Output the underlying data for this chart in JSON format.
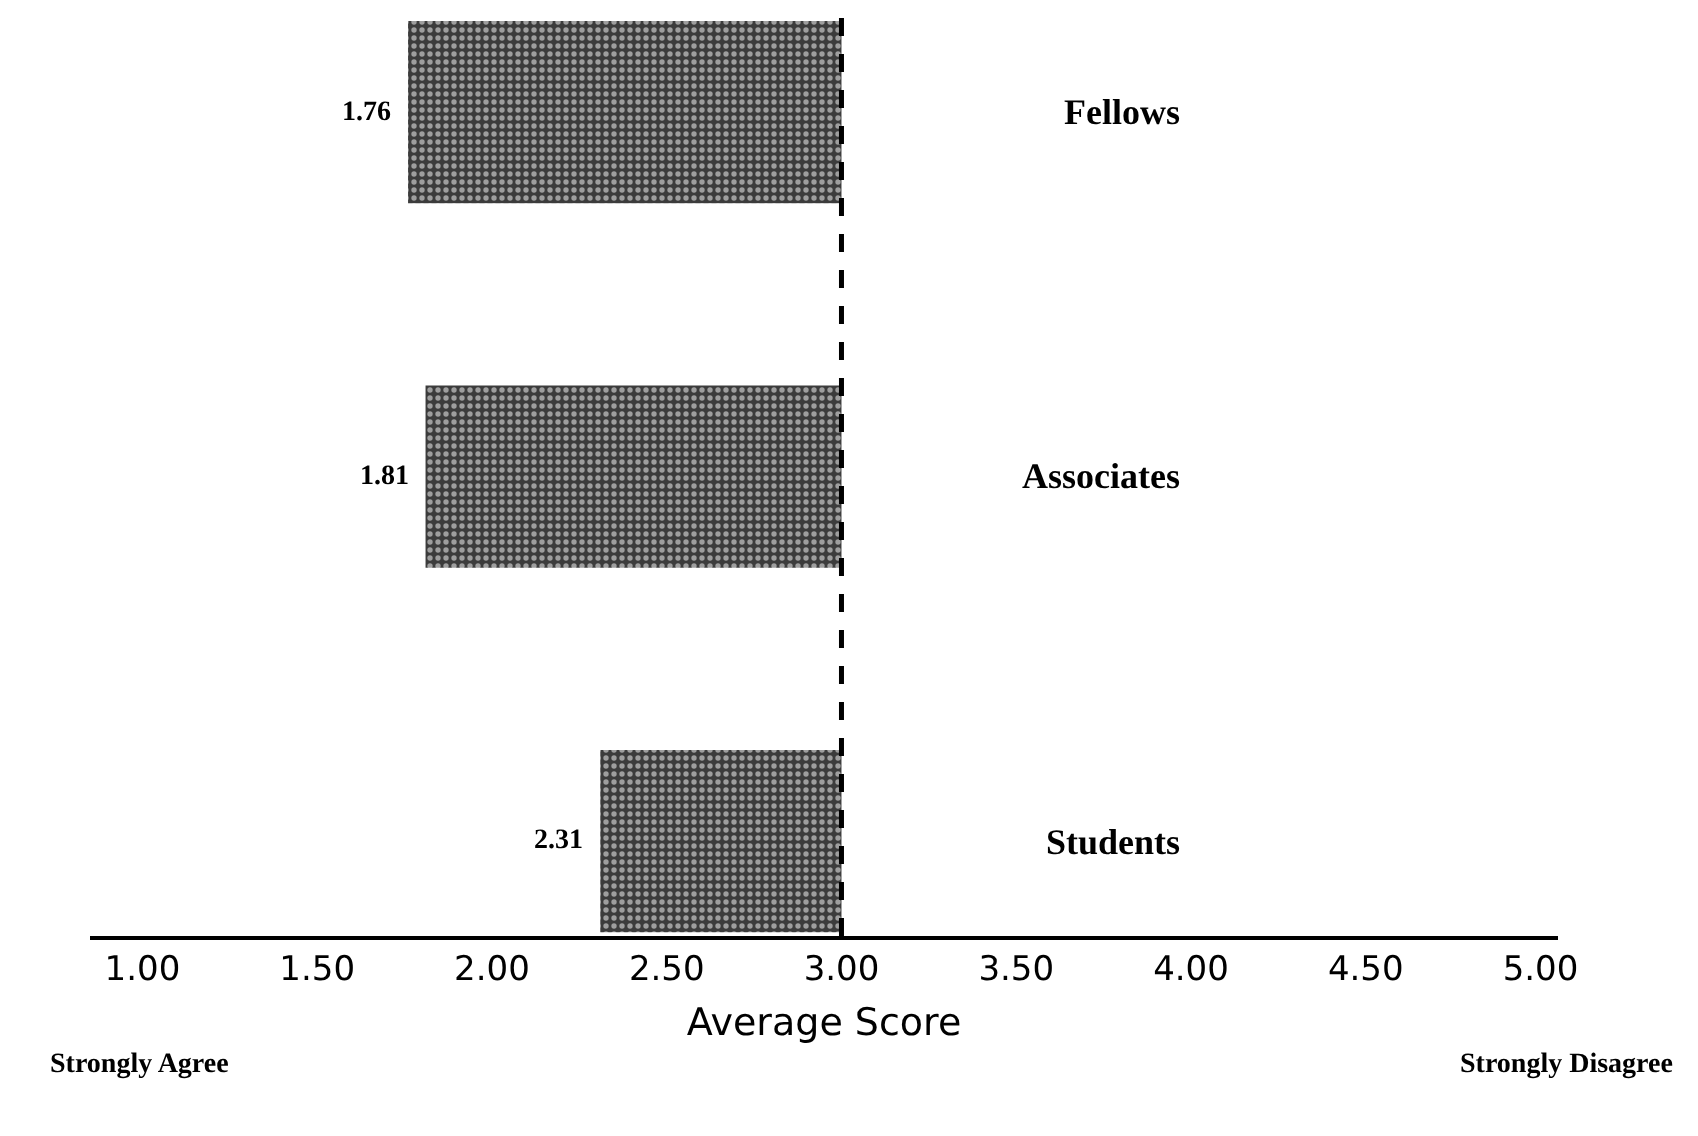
{
  "chart_data": {
    "type": "bar",
    "orientation": "horizontal",
    "categories": [
      "Fellows",
      "Associates",
      "Students"
    ],
    "base": [
      3.0,
      3.0,
      3.0
    ],
    "values": [
      -1.24,
      -1.19,
      -0.69
    ],
    "value_labels": [
      "1.76",
      "1.81",
      "2.31"
    ],
    "color": "#3c3c3c",
    "xlabel": "Average Score",
    "xlim": [
      0.85,
      5.05
    ],
    "xticks": [
      {
        "value": 1,
        "label": "1.00"
      },
      {
        "value": 1.5,
        "label": "1.50"
      },
      {
        "value": 2,
        "label": "2.00"
      },
      {
        "value": 2.5,
        "label": "2.50"
      },
      {
        "value": 3,
        "label": "3.00"
      },
      {
        "value": 3.5,
        "label": "3.50"
      },
      {
        "value": 4,
        "label": "4.00"
      },
      {
        "value": 4.5,
        "label": "4.50"
      },
      {
        "value": 5,
        "label": "5.00"
      }
    ],
    "ref_lines": [
      {
        "axis": "x",
        "value": 3.0,
        "line_style": "dashed",
        "color": "#000000"
      }
    ],
    "annotations": [
      "Strongly Agree",
      "Strongly Disagree"
    ]
  }
}
